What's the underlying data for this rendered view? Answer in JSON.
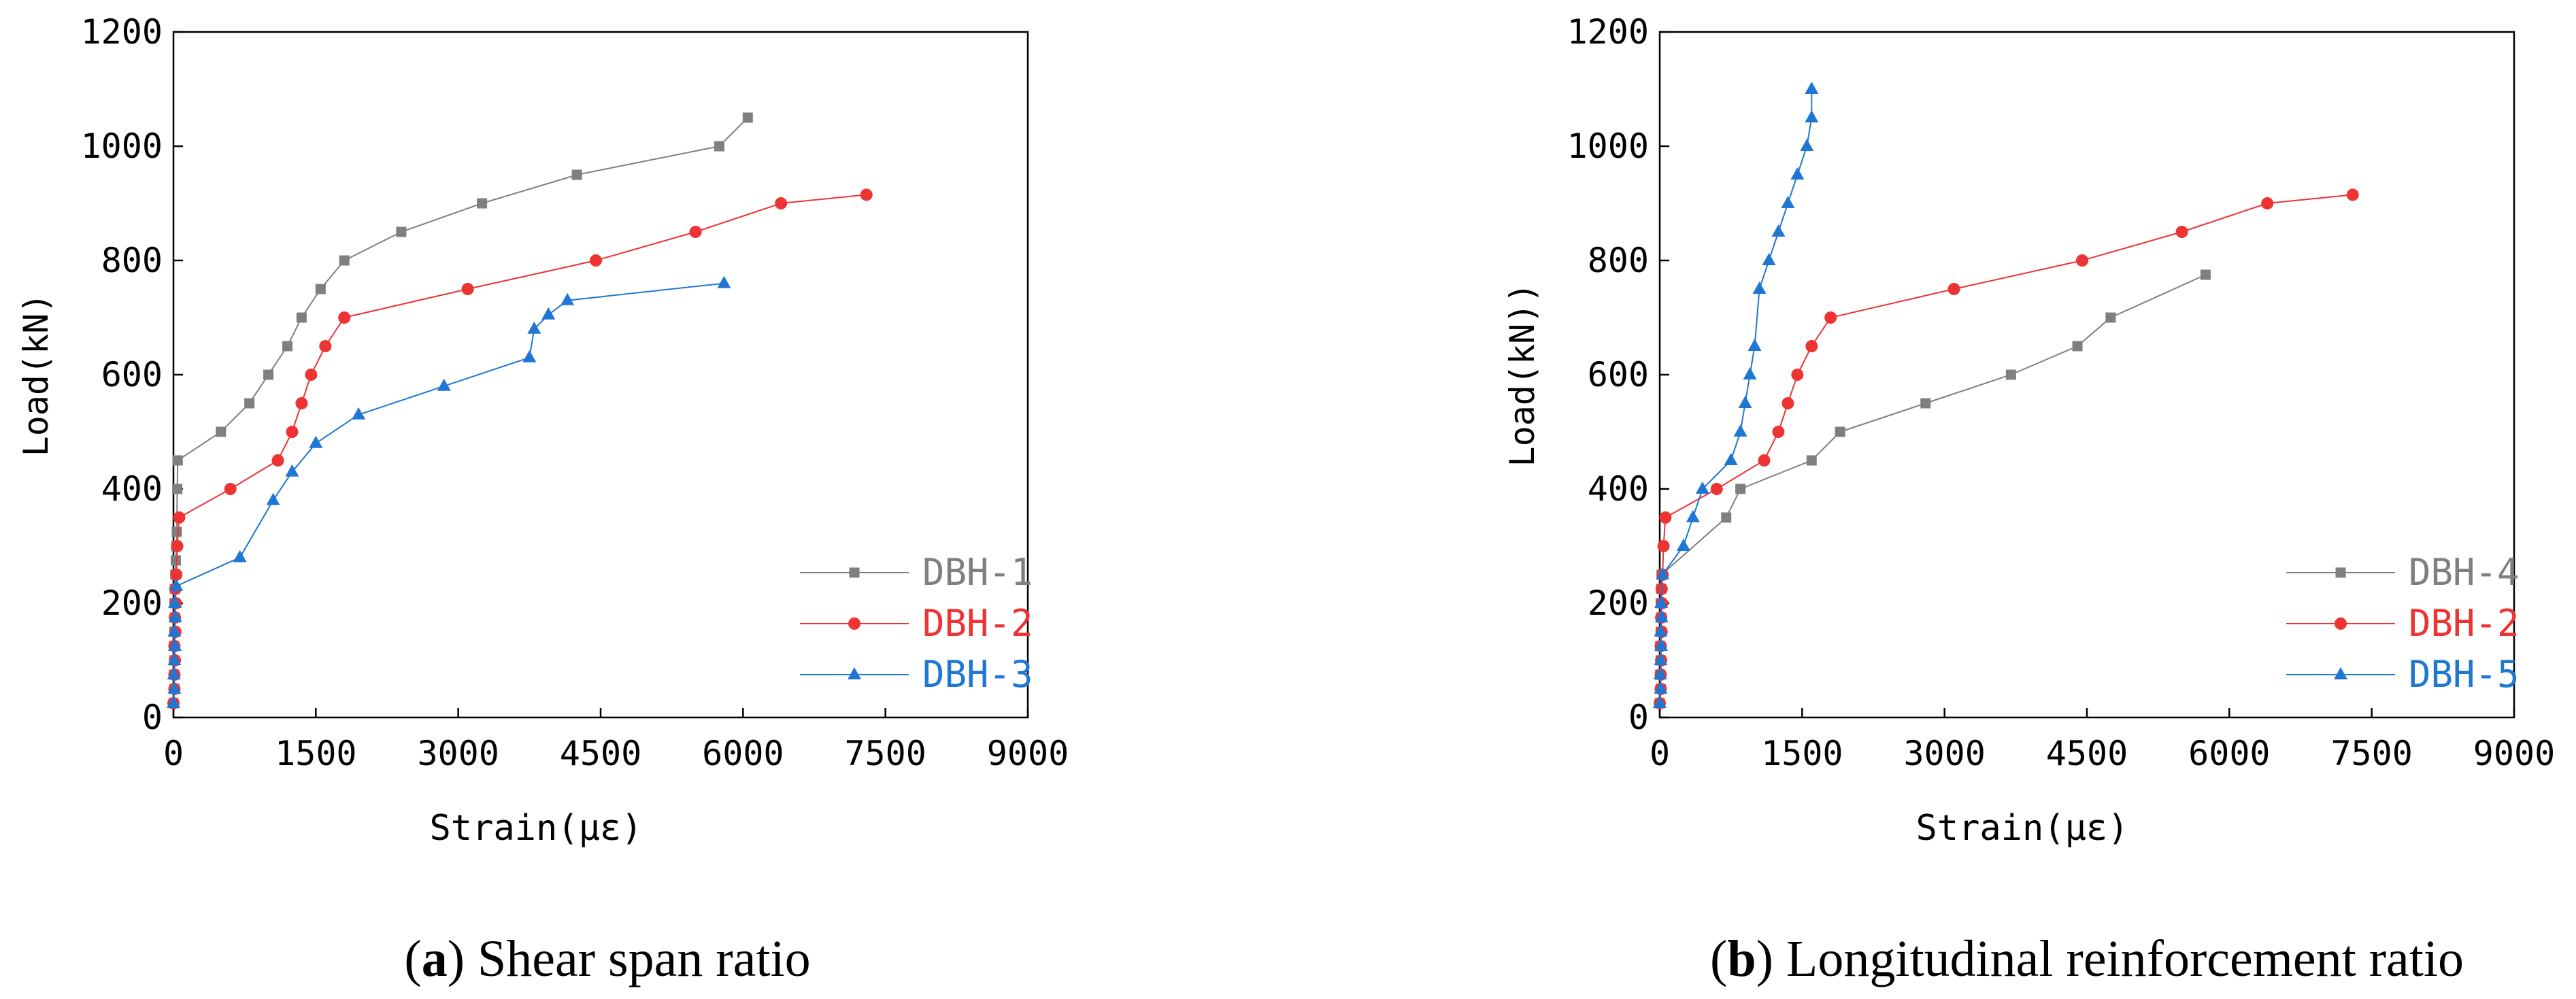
{
  "figure": {
    "panels": [
      {
        "caption_letter": "a",
        "caption_text": "Shear span ratio",
        "chart_data": {
          "type": "line",
          "title": "",
          "xlabel": "Strain(με)",
          "ylabel": "Load(kN)",
          "xlim": [
            0,
            9000
          ],
          "ylim": [
            0,
            1200
          ],
          "xticks": [
            0,
            1500,
            3000,
            4500,
            6000,
            7500,
            9000
          ],
          "yticks": [
            0,
            200,
            400,
            600,
            800,
            1000,
            1200
          ],
          "legend_position": "bottom-right",
          "series": [
            {
              "name": "DBH-1",
              "color": "#7f7f7f",
              "marker": "square",
              "points": [
                [
                  0,
                  25
                ],
                [
                  10,
                  50
                ],
                [
                  5,
                  75
                ],
                [
                  10,
                  100
                ],
                [
                  5,
                  125
                ],
                [
                  10,
                  150
                ],
                [
                  15,
                  175
                ],
                [
                  10,
                  200
                ],
                [
                  15,
                  225
                ],
                [
                  20,
                  250
                ],
                [
                  25,
                  275
                ],
                [
                  30,
                  300
                ],
                [
                  35,
                  325
                ],
                [
                  40,
                  400
                ],
                [
                  45,
                  450
                ],
                [
                  500,
                  500
                ],
                [
                  800,
                  550
                ],
                [
                  1000,
                  600
                ],
                [
                  1200,
                  650
                ],
                [
                  1350,
                  700
                ],
                [
                  1550,
                  750
                ],
                [
                  1800,
                  800
                ],
                [
                  2400,
                  850
                ],
                [
                  3250,
                  900
                ],
                [
                  4250,
                  950
                ],
                [
                  5750,
                  1000
                ],
                [
                  6050,
                  1050
                ]
              ]
            },
            {
              "name": "DBH-2",
              "color": "#ee3333",
              "marker": "circle",
              "points": [
                [
                  0,
                  25
                ],
                [
                  10,
                  50
                ],
                [
                  10,
                  75
                ],
                [
                  15,
                  100
                ],
                [
                  10,
                  125
                ],
                [
                  20,
                  150
                ],
                [
                  15,
                  175
                ],
                [
                  25,
                  200
                ],
                [
                  20,
                  225
                ],
                [
                  30,
                  250
                ],
                [
                  40,
                  300
                ],
                [
                  60,
                  350
                ],
                [
                  600,
                  400
                ],
                [
                  1100,
                  450
                ],
                [
                  1250,
                  500
                ],
                [
                  1350,
                  550
                ],
                [
                  1450,
                  600
                ],
                [
                  1600,
                  650
                ],
                [
                  1800,
                  700
                ],
                [
                  3100,
                  750
                ],
                [
                  4450,
                  800
                ],
                [
                  5500,
                  850
                ],
                [
                  6400,
                  900
                ],
                [
                  7300,
                  915
                ]
              ]
            },
            {
              "name": "DBH-3",
              "color": "#1f77d4",
              "marker": "triangle",
              "points": [
                [
                  0,
                  25
                ],
                [
                  10,
                  50
                ],
                [
                  5,
                  75
                ],
                [
                  10,
                  100
                ],
                [
                  15,
                  125
                ],
                [
                  10,
                  150
                ],
                [
                  20,
                  175
                ],
                [
                  15,
                  200
                ],
                [
                  30,
                  230
                ],
                [
                  700,
                  280
                ],
                [
                  1050,
                  380
                ],
                [
                  1250,
                  430
                ],
                [
                  1500,
                  480
                ],
                [
                  1950,
                  530
                ],
                [
                  2850,
                  580
                ],
                [
                  3750,
                  630
                ],
                [
                  3800,
                  680
                ],
                [
                  3950,
                  705
                ],
                [
                  4150,
                  730
                ],
                [
                  5800,
                  760
                ]
              ]
            }
          ]
        }
      },
      {
        "caption_letter": "b",
        "caption_text": "Longitudinal reinforcement ratio",
        "chart_data": {
          "type": "line",
          "title": "",
          "xlabel": "Strain(με)",
          "ylabel": "Load(kN))",
          "xlim": [
            0,
            9000
          ],
          "ylim": [
            0,
            1200
          ],
          "xticks": [
            0,
            1500,
            3000,
            4500,
            6000,
            7500,
            9000
          ],
          "yticks": [
            0,
            200,
            400,
            600,
            800,
            1000,
            1200
          ],
          "legend_position": "bottom-right",
          "series": [
            {
              "name": "DBH-4",
              "color": "#7f7f7f",
              "marker": "square",
              "points": [
                [
                  0,
                  25
                ],
                [
                  10,
                  50
                ],
                [
                  5,
                  75
                ],
                [
                  10,
                  100
                ],
                [
                  5,
                  125
                ],
                [
                  10,
                  150
                ],
                [
                  15,
                  175
                ],
                [
                  10,
                  200
                ],
                [
                  15,
                  225
                ],
                [
                  20,
                  250
                ],
                [
                  700,
                  350
                ],
                [
                  850,
                  400
                ],
                [
                  1600,
                  450
                ],
                [
                  1900,
                  500
                ],
                [
                  2800,
                  550
                ],
                [
                  3700,
                  600
                ],
                [
                  4400,
                  650
                ],
                [
                  4750,
                  700
                ],
                [
                  5750,
                  775
                ]
              ]
            },
            {
              "name": "DBH-2",
              "color": "#ee3333",
              "marker": "circle",
              "points": [
                [
                  0,
                  25
                ],
                [
                  10,
                  50
                ],
                [
                  10,
                  75
                ],
                [
                  15,
                  100
                ],
                [
                  10,
                  125
                ],
                [
                  20,
                  150
                ],
                [
                  15,
                  175
                ],
                [
                  25,
                  200
                ],
                [
                  20,
                  225
                ],
                [
                  30,
                  250
                ],
                [
                  40,
                  300
                ],
                [
                  60,
                  350
                ],
                [
                  600,
                  400
                ],
                [
                  1100,
                  450
                ],
                [
                  1250,
                  500
                ],
                [
                  1350,
                  550
                ],
                [
                  1450,
                  600
                ],
                [
                  1600,
                  650
                ],
                [
                  1800,
                  700
                ],
                [
                  3100,
                  750
                ],
                [
                  4450,
                  800
                ],
                [
                  5500,
                  850
                ],
                [
                  6400,
                  900
                ],
                [
                  7300,
                  915
                ]
              ]
            },
            {
              "name": "DBH-5",
              "color": "#1f77d4",
              "marker": "triangle",
              "points": [
                [
                  0,
                  25
                ],
                [
                  10,
                  50
                ],
                [
                  5,
                  75
                ],
                [
                  10,
                  100
                ],
                [
                  15,
                  125
                ],
                [
                  10,
                  150
                ],
                [
                  20,
                  175
                ],
                [
                  15,
                  200
                ],
                [
                  30,
                  250
                ],
                [
                  250,
                  300
                ],
                [
                  350,
                  350
                ],
                [
                  450,
                  400
                ],
                [
                  750,
                  450
                ],
                [
                  850,
                  500
                ],
                [
                  900,
                  550
                ],
                [
                  950,
                  600
                ],
                [
                  1000,
                  650
                ],
                [
                  1050,
                  750
                ],
                [
                  1150,
                  800
                ],
                [
                  1250,
                  850
                ],
                [
                  1350,
                  900
                ],
                [
                  1450,
                  950
                ],
                [
                  1550,
                  1000
                ],
                [
                  1600,
                  1050
                ],
                [
                  1600,
                  1100
                ]
              ]
            }
          ]
        }
      }
    ]
  }
}
